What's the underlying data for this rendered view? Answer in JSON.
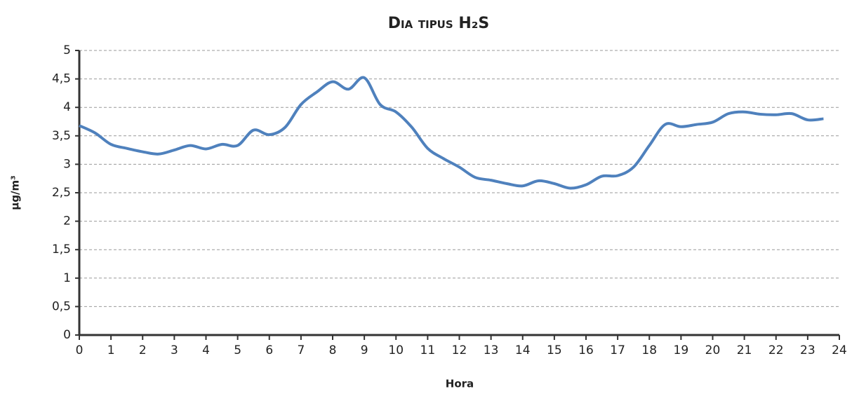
{
  "chart_data": {
    "type": "line",
    "title": "Dia tipus H₂S",
    "xlabel": "Hora",
    "ylabel": "µg/m³",
    "x": [
      0,
      0.5,
      1,
      1.5,
      2,
      2.5,
      3,
      3.5,
      4,
      4.5,
      5,
      5.5,
      6,
      6.5,
      7,
      7.5,
      8,
      8.5,
      9,
      9.5,
      10,
      10.5,
      11,
      11.5,
      12,
      12.5,
      13,
      13.5,
      14,
      14.5,
      15,
      15.5,
      16,
      16.5,
      17,
      17.5,
      18,
      18.5,
      19,
      19.5,
      20,
      20.5,
      21,
      21.5,
      22,
      22.5,
      23,
      23.5
    ],
    "series": [
      {
        "name": "H₂S",
        "color": "#4f81bd",
        "values": [
          3.68,
          3.55,
          3.35,
          3.28,
          3.22,
          3.18,
          3.25,
          3.33,
          3.27,
          3.35,
          3.33,
          3.6,
          3.52,
          3.65,
          4.05,
          4.27,
          4.45,
          4.32,
          4.52,
          4.05,
          3.92,
          3.65,
          3.28,
          3.1,
          2.95,
          2.77,
          2.72,
          2.66,
          2.62,
          2.71,
          2.66,
          2.58,
          2.64,
          2.79,
          2.8,
          2.95,
          3.33,
          3.7,
          3.66,
          3.7,
          3.74,
          3.89,
          3.92,
          3.88,
          3.87,
          3.89,
          3.78,
          3.8
        ]
      }
    ],
    "xlim": [
      0,
      24
    ],
    "xticks": [
      0,
      1,
      2,
      3,
      4,
      5,
      6,
      7,
      8,
      9,
      10,
      11,
      12,
      13,
      14,
      15,
      16,
      17,
      18,
      19,
      20,
      21,
      22,
      23,
      24
    ],
    "ylim": [
      0,
      5
    ],
    "yticks": [
      0,
      {
        "value": 0.5,
        "label": "0,5"
      },
      1,
      {
        "value": 1.5,
        "label": "1,5"
      },
      2,
      {
        "value": 2.5,
        "label": "2,5"
      },
      3,
      {
        "value": 3.5,
        "label": "3,5"
      },
      4,
      {
        "value": 4.5,
        "label": "4,5"
      },
      5
    ],
    "grid": true
  }
}
